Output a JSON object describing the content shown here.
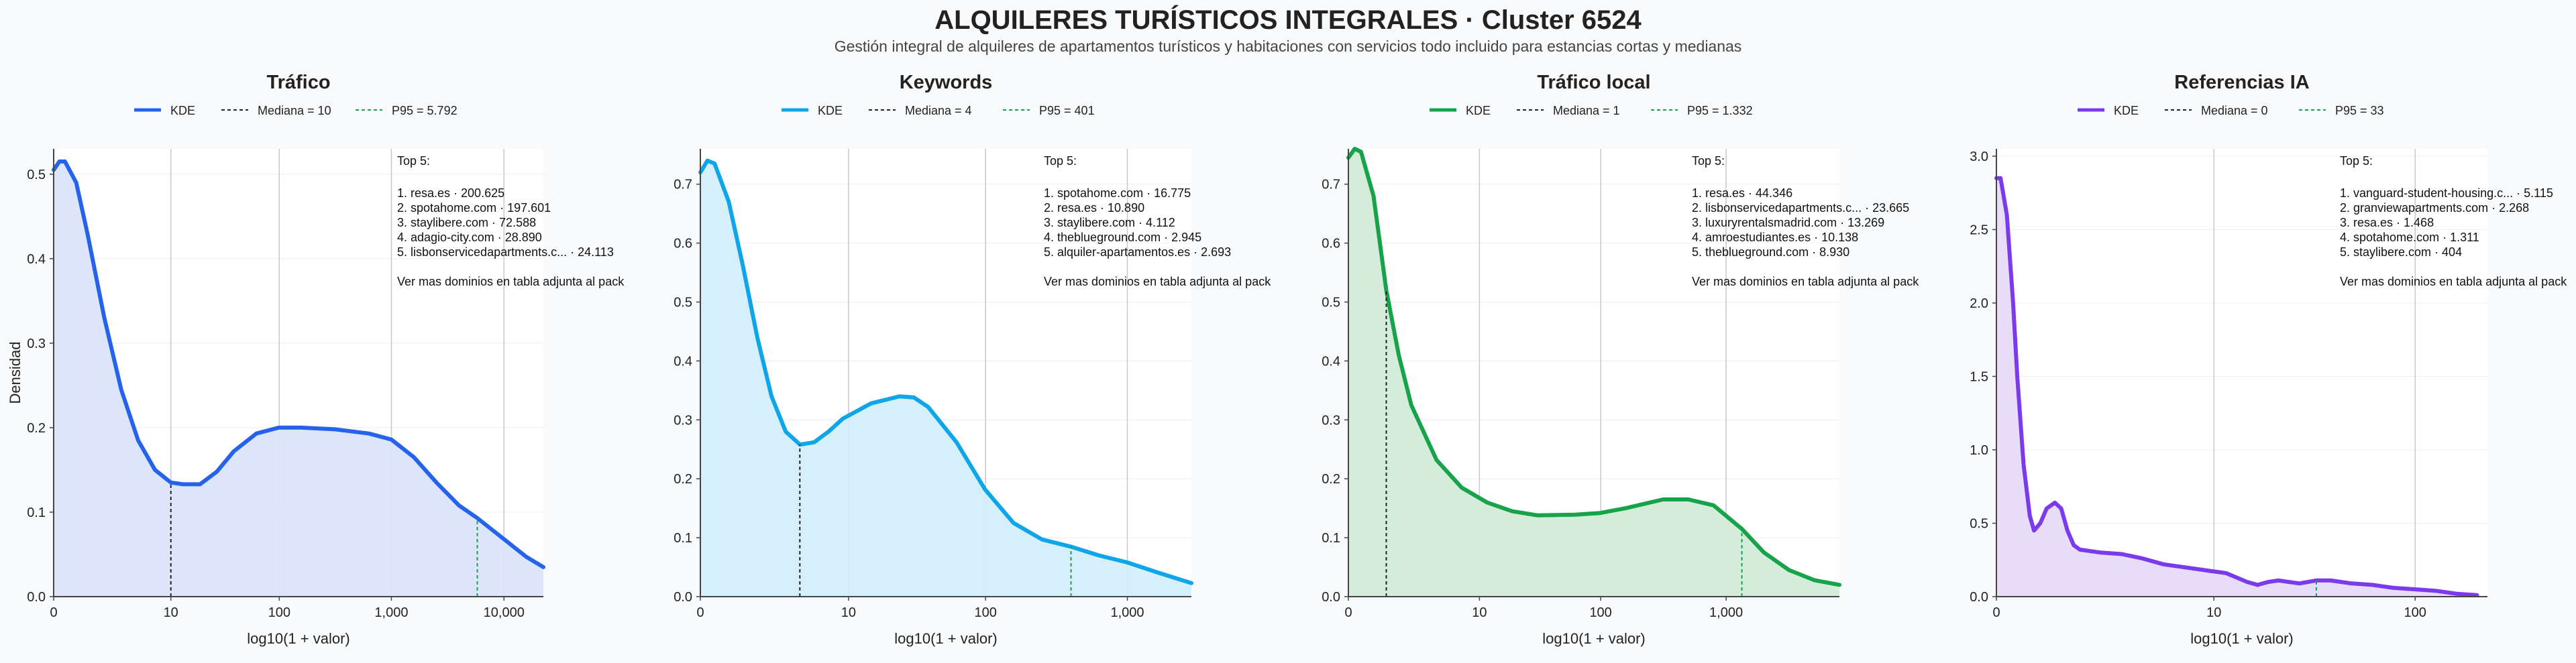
{
  "page": {
    "title": "ALQUILERES TURÍSTICOS INTEGRALES · Cluster 6524",
    "subtitle": "Gestión integral de alquileres de apartamentos turísticos y habitaciones con servicios todo incluido para estancias cortas y medianas"
  },
  "chart_data": [
    {
      "type": "area",
      "title": "Tráfico",
      "color": "#2563eb",
      "fill": "#dbe4fb",
      "xlabel": "log10(1 + valor)",
      "ylabel": "Densidad",
      "xlim": [
        0,
        4.35
      ],
      "ylim": [
        0,
        0.53
      ],
      "xticks": [
        {
          "v": 0,
          "label": "0"
        },
        {
          "v": 1.041,
          "label": "10"
        },
        {
          "v": 2.004,
          "label": "100"
        },
        {
          "v": 3.0,
          "label": "1,000"
        },
        {
          "v": 4.0,
          "label": "10,000"
        }
      ],
      "yticks": [
        {
          "v": 0,
          "label": "0.0"
        },
        {
          "v": 0.1,
          "label": "0.1"
        },
        {
          "v": 0.2,
          "label": "0.2"
        },
        {
          "v": 0.3,
          "label": "0.3"
        },
        {
          "v": 0.4,
          "label": "0.4"
        },
        {
          "v": 0.5,
          "label": "0.5"
        }
      ],
      "legend": {
        "kde": "KDE",
        "median": "Mediana = 10",
        "p95": "P95 = 5.792"
      },
      "median_x": 1.041,
      "median_y": 0.135,
      "p95_x": 3.763,
      "p95_y": 0.093,
      "kde": [
        [
          0,
          0.505
        ],
        [
          0.05,
          0.515
        ],
        [
          0.1,
          0.515
        ],
        [
          0.2,
          0.49
        ],
        [
          0.3,
          0.43
        ],
        [
          0.45,
          0.33
        ],
        [
          0.6,
          0.245
        ],
        [
          0.75,
          0.185
        ],
        [
          0.9,
          0.15
        ],
        [
          1.041,
          0.135
        ],
        [
          1.15,
          0.133
        ],
        [
          1.3,
          0.133
        ],
        [
          1.45,
          0.148
        ],
        [
          1.6,
          0.172
        ],
        [
          1.8,
          0.193
        ],
        [
          2.0,
          0.2
        ],
        [
          2.2,
          0.2
        ],
        [
          2.5,
          0.198
        ],
        [
          2.8,
          0.193
        ],
        [
          3.0,
          0.186
        ],
        [
          3.2,
          0.165
        ],
        [
          3.4,
          0.135
        ],
        [
          3.6,
          0.108
        ],
        [
          3.763,
          0.093
        ],
        [
          4.0,
          0.068
        ],
        [
          4.2,
          0.047
        ],
        [
          4.35,
          0.035
        ]
      ],
      "top_title": "Top 5:",
      "top": [
        "1. resa.es · 200.625",
        "2. spotahome.com · 197.601",
        "3. staylibere.com · 72.588",
        "4. adagio-city.com · 28.890",
        "5. lisbonservicedapartments.c... · 24.113"
      ],
      "more": "Ver mas dominios en tabla adjunta al pack"
    },
    {
      "type": "area",
      "title": "Keywords",
      "color": "#0ea5e9",
      "fill": "#d3eefb",
      "xlabel": "log10(1 + valor)",
      "ylabel": "",
      "xlim": [
        0,
        3.45
      ],
      "ylim": [
        0,
        0.76
      ],
      "xticks": [
        {
          "v": 0,
          "label": "0"
        },
        {
          "v": 1.041,
          "label": "10"
        },
        {
          "v": 2.004,
          "label": "100"
        },
        {
          "v": 3.0,
          "label": "1,000"
        }
      ],
      "yticks": [
        {
          "v": 0,
          "label": "0.0"
        },
        {
          "v": 0.1,
          "label": "0.1"
        },
        {
          "v": 0.2,
          "label": "0.2"
        },
        {
          "v": 0.3,
          "label": "0.3"
        },
        {
          "v": 0.4,
          "label": "0.4"
        },
        {
          "v": 0.5,
          "label": "0.5"
        },
        {
          "v": 0.6,
          "label": "0.6"
        },
        {
          "v": 0.7,
          "label": "0.7"
        }
      ],
      "legend": {
        "kde": "KDE",
        "median": "Mediana = 4",
        "p95": "P95 = 401"
      },
      "median_x": 0.699,
      "median_y": 0.258,
      "p95_x": 2.604,
      "p95_y": 0.085,
      "kde": [
        [
          0,
          0.72
        ],
        [
          0.05,
          0.74
        ],
        [
          0.1,
          0.735
        ],
        [
          0.2,
          0.67
        ],
        [
          0.3,
          0.56
        ],
        [
          0.4,
          0.44
        ],
        [
          0.5,
          0.34
        ],
        [
          0.6,
          0.28
        ],
        [
          0.7,
          0.258
        ],
        [
          0.8,
          0.262
        ],
        [
          0.9,
          0.28
        ],
        [
          1.0,
          0.302
        ],
        [
          1.2,
          0.328
        ],
        [
          1.4,
          0.34
        ],
        [
          1.5,
          0.338
        ],
        [
          1.6,
          0.322
        ],
        [
          1.8,
          0.262
        ],
        [
          2.0,
          0.182
        ],
        [
          2.2,
          0.125
        ],
        [
          2.4,
          0.097
        ],
        [
          2.6,
          0.085
        ],
        [
          2.8,
          0.07
        ],
        [
          3.0,
          0.058
        ],
        [
          3.2,
          0.042
        ],
        [
          3.45,
          0.023
        ]
      ],
      "top_title": "Top 5:",
      "top": [
        "1. spotahome.com · 16.775",
        "2. resa.es · 10.890",
        "3. staylibere.com · 4.112",
        "4. theblueground.com · 2.945",
        "5. alquiler-apartamentos.es · 2.693"
      ],
      "more": "Ver mas dominios en tabla adjunta al pack"
    },
    {
      "type": "area",
      "title": "Tráfico local",
      "color": "#16a34a",
      "fill": "#d2ecd9",
      "xlabel": "log10(1 + valor)",
      "ylabel": "",
      "xlim": [
        0,
        3.9
      ],
      "ylim": [
        0,
        0.76
      ],
      "xticks": [
        {
          "v": 0,
          "label": "0"
        },
        {
          "v": 1.041,
          "label": "10"
        },
        {
          "v": 2.004,
          "label": "100"
        },
        {
          "v": 3.0,
          "label": "1,000"
        }
      ],
      "yticks": [
        {
          "v": 0,
          "label": "0.0"
        },
        {
          "v": 0.1,
          "label": "0.1"
        },
        {
          "v": 0.2,
          "label": "0.2"
        },
        {
          "v": 0.3,
          "label": "0.3"
        },
        {
          "v": 0.4,
          "label": "0.4"
        },
        {
          "v": 0.5,
          "label": "0.5"
        },
        {
          "v": 0.6,
          "label": "0.6"
        },
        {
          "v": 0.7,
          "label": "0.7"
        }
      ],
      "legend": {
        "kde": "KDE",
        "median": "Mediana = 1",
        "p95": "P95 = 1.332"
      },
      "median_x": 0.301,
      "median_y": 0.52,
      "p95_x": 3.125,
      "p95_y": 0.115,
      "kde": [
        [
          0,
          0.745
        ],
        [
          0.05,
          0.76
        ],
        [
          0.1,
          0.755
        ],
        [
          0.2,
          0.68
        ],
        [
          0.301,
          0.52
        ],
        [
          0.4,
          0.41
        ],
        [
          0.5,
          0.325
        ],
        [
          0.7,
          0.232
        ],
        [
          0.9,
          0.185
        ],
        [
          1.1,
          0.16
        ],
        [
          1.3,
          0.145
        ],
        [
          1.5,
          0.138
        ],
        [
          1.8,
          0.139
        ],
        [
          2.0,
          0.142
        ],
        [
          2.2,
          0.15
        ],
        [
          2.5,
          0.165
        ],
        [
          2.7,
          0.165
        ],
        [
          2.9,
          0.155
        ],
        [
          3.125,
          0.115
        ],
        [
          3.3,
          0.075
        ],
        [
          3.5,
          0.045
        ],
        [
          3.7,
          0.028
        ],
        [
          3.9,
          0.02
        ]
      ],
      "top_title": "Top 5:",
      "top": [
        "1. resa.es · 44.346",
        "2. lisbonservicedapartments.c... · 23.665",
        "3. luxuryrentalsmadrid.com · 13.269",
        "4. amroestudiantes.es · 10.138",
        "5. theblueground.com · 8.930"
      ],
      "more": "Ver mas dominios en tabla adjunta al pack"
    },
    {
      "type": "area",
      "title": "Referencias IA",
      "color": "#7c3aed",
      "fill": "#e6dbf8",
      "xlabel": "log10(1 + valor)",
      "ylabel": "",
      "xlim": [
        0,
        2.35
      ],
      "ylim": [
        0,
        3.05
      ],
      "xticks": [
        {
          "v": 0,
          "label": "0"
        },
        {
          "v": 1.041,
          "label": "10"
        },
        {
          "v": 2.004,
          "label": "100"
        }
      ],
      "yticks": [
        {
          "v": 0,
          "label": "0.0"
        },
        {
          "v": 0.5,
          "label": "0.5"
        },
        {
          "v": 1.0,
          "label": "1.0"
        },
        {
          "v": 1.5,
          "label": "1.5"
        },
        {
          "v": 2.0,
          "label": "2.0"
        },
        {
          "v": 2.5,
          "label": "2.5"
        },
        {
          "v": 3.0,
          "label": "3.0"
        }
      ],
      "legend": {
        "kde": "KDE",
        "median": "Mediana = 0",
        "p95": "P95 = 33"
      },
      "median_x": 0.0,
      "median_y": 2.85,
      "p95_x": 1.531,
      "p95_y": 0.11,
      "kde": [
        [
          0,
          2.85
        ],
        [
          0.02,
          2.85
        ],
        [
          0.05,
          2.6
        ],
        [
          0.08,
          2.0
        ],
        [
          0.1,
          1.5
        ],
        [
          0.13,
          0.9
        ],
        [
          0.16,
          0.55
        ],
        [
          0.18,
          0.45
        ],
        [
          0.21,
          0.5
        ],
        [
          0.24,
          0.6
        ],
        [
          0.28,
          0.64
        ],
        [
          0.31,
          0.6
        ],
        [
          0.34,
          0.45
        ],
        [
          0.37,
          0.35
        ],
        [
          0.4,
          0.32
        ],
        [
          0.5,
          0.3
        ],
        [
          0.6,
          0.29
        ],
        [
          0.7,
          0.26
        ],
        [
          0.8,
          0.22
        ],
        [
          0.9,
          0.2
        ],
        [
          1.0,
          0.18
        ],
        [
          1.1,
          0.16
        ],
        [
          1.2,
          0.1
        ],
        [
          1.25,
          0.08
        ],
        [
          1.3,
          0.1
        ],
        [
          1.35,
          0.11
        ],
        [
          1.45,
          0.09
        ],
        [
          1.53,
          0.11
        ],
        [
          1.6,
          0.11
        ],
        [
          1.7,
          0.09
        ],
        [
          1.8,
          0.08
        ],
        [
          1.9,
          0.06
        ],
        [
          2.0,
          0.05
        ],
        [
          2.1,
          0.04
        ],
        [
          2.2,
          0.02
        ],
        [
          2.3,
          0.01
        ]
      ],
      "top_title": "Top 5:",
      "top": [
        "1. vanguard-student-housing.c... · 5.115",
        "2. granviewapartments.com · 2.268",
        "3. resa.es · 1.468",
        "4. spotahome.com · 1.311",
        "5. staylibere.com · 404"
      ],
      "more": "Ver mas dominios en tabla adjunta al pack"
    }
  ]
}
